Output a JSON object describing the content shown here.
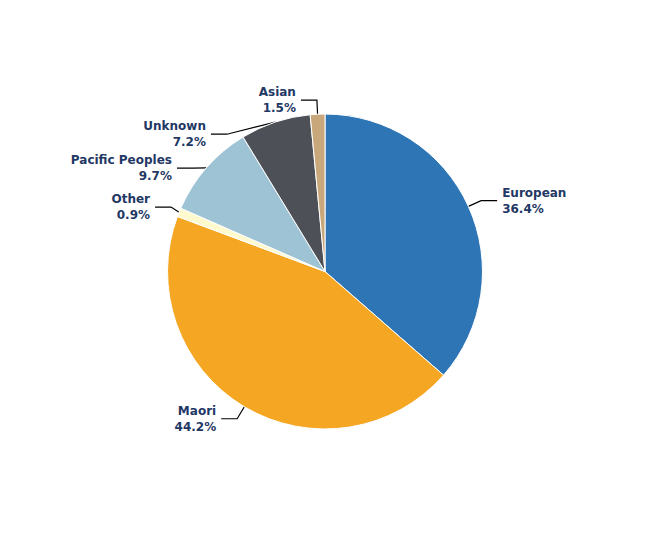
{
  "chart_data": {
    "type": "pie",
    "categories": [
      "European",
      "Maori",
      "Other",
      "Pacific Peoples",
      "Unknown",
      "Asian"
    ],
    "values": [
      36.4,
      44.2,
      0.9,
      9.7,
      7.2,
      1.5
    ],
    "value_labels": [
      "36.4%",
      "44.2%",
      "0.9%",
      "9.7%",
      "7.2%",
      "1.5%"
    ],
    "colors": [
      "#2E75B6",
      "#F5A623",
      "#FFFACD",
      "#9DC3D4",
      "#4D5057",
      "#C8A87A"
    ],
    "data_labels": true
  }
}
